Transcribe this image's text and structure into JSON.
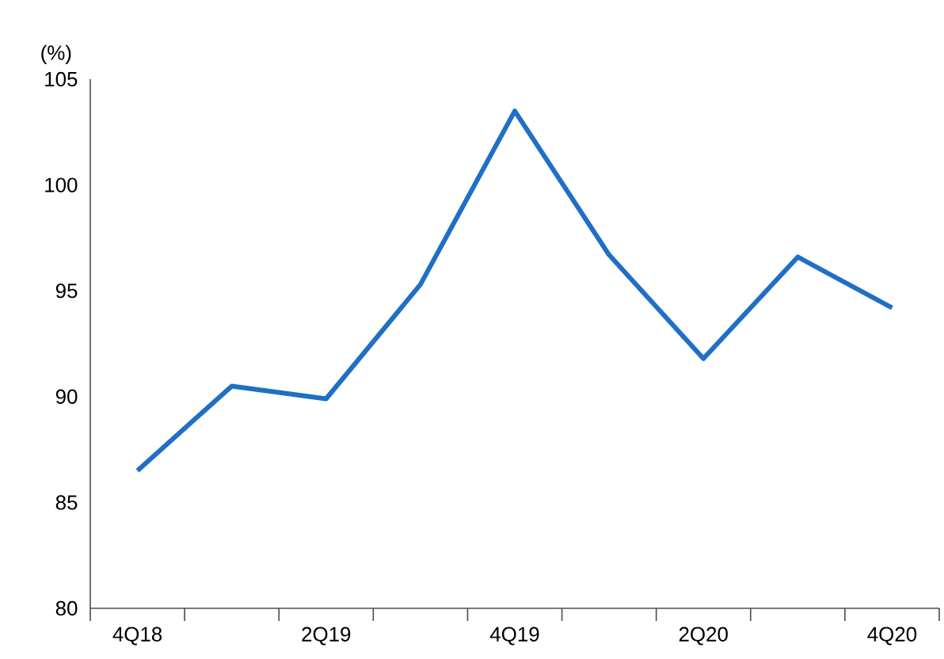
{
  "chart_data": {
    "type": "line",
    "ylabel": "(%)",
    "categories": [
      "4Q18",
      null,
      "2Q19",
      null,
      "4Q19",
      null,
      "2Q20",
      null,
      "4Q20"
    ],
    "series": [
      {
        "color": "#1f6fc5",
        "values": [
          86.5,
          90.5,
          89.9,
          95.3,
          103.5,
          96.7,
          91.8,
          96.6,
          94.2
        ]
      }
    ],
    "ylim": [
      80,
      105
    ],
    "yticks": [
      80,
      85,
      90,
      95,
      100,
      105
    ],
    "grid": false,
    "marker": "none",
    "line_style": "solid"
  }
}
